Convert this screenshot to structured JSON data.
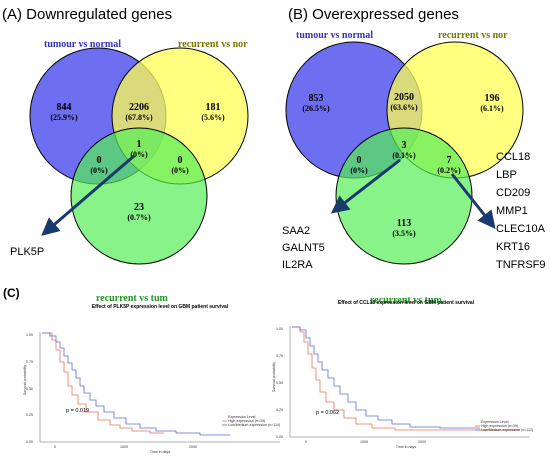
{
  "panelA": {
    "title": "(A) Downregulated genes",
    "sets": [
      "tumour vs normal",
      "recurrent vs nor",
      "recurrent vs tum"
    ],
    "regions": [
      {
        "count": "844",
        "pct": "(25.9%)"
      },
      {
        "count": "2206",
        "pct": "(67.8%)"
      },
      {
        "count": "181",
        "pct": "(5.6%)"
      },
      {
        "count": "0",
        "pct": "(0%)"
      },
      {
        "count": "1",
        "pct": "(0%)"
      },
      {
        "count": "0",
        "pct": "(0%)"
      },
      {
        "count": "23",
        "pct": "(0.7%)"
      }
    ],
    "callout": "PLK5P"
  },
  "panelB": {
    "title": "(B) Overexpressed genes",
    "sets": [
      "tumour vs normal",
      "recurrent vs nor",
      "recurrent vs tum"
    ],
    "regions": [
      {
        "count": "853",
        "pct": "(26.5%)"
      },
      {
        "count": "2050",
        "pct": "(63.6%)"
      },
      {
        "count": "196",
        "pct": "(6.1%)"
      },
      {
        "count": "0",
        "pct": "(0%)"
      },
      {
        "count": "3",
        "pct": "(0.1%)"
      },
      {
        "count": "7",
        "pct": "(0.2%)"
      },
      {
        "count": "113",
        "pct": "(3.5%)"
      }
    ],
    "callout_left": [
      "SAA2",
      "GALNT5",
      "IL2RA"
    ],
    "callout_right": [
      "CCL18",
      "LBP",
      "CD209",
      "MMP1",
      "CLEC10A",
      "KRT16",
      "TNFRSF9"
    ]
  },
  "panelC": {
    "label": "(C)",
    "colors": {
      "high": "#e8735a",
      "low": "#5b6fd6"
    },
    "plots": [
      {
        "title": "Effect of PLK5P expression level on GBM patient survival",
        "ylabel": "Survival probability",
        "xlabel": "Time in days",
        "yticks": [
          "1.00",
          "0.75",
          "0.50",
          "0.25",
          "0.00"
        ],
        "xticks": [
          "0",
          "1000",
          "2000"
        ],
        "pvalue": "p = 0.019",
        "legend_title": "Expression Level",
        "legend_high": "High expression (n=39)",
        "legend_low": "Low/Medium-expression (n=114)"
      },
      {
        "title": "Effect of CCL18 expression level on GBM patient survival",
        "ylabel": "Survival probability",
        "xlabel": "Time in days",
        "yticks": [
          "1.00",
          "0.75",
          "0.50",
          "0.25",
          "0.00"
        ],
        "xticks": [
          "0",
          "1000",
          "2000"
        ],
        "pvalue": "p = 0.062",
        "legend_title": "Expression Level",
        "legend_high": "High expression (n=39)",
        "legend_low": "Low/Medium-expression (n=112)"
      }
    ]
  }
}
